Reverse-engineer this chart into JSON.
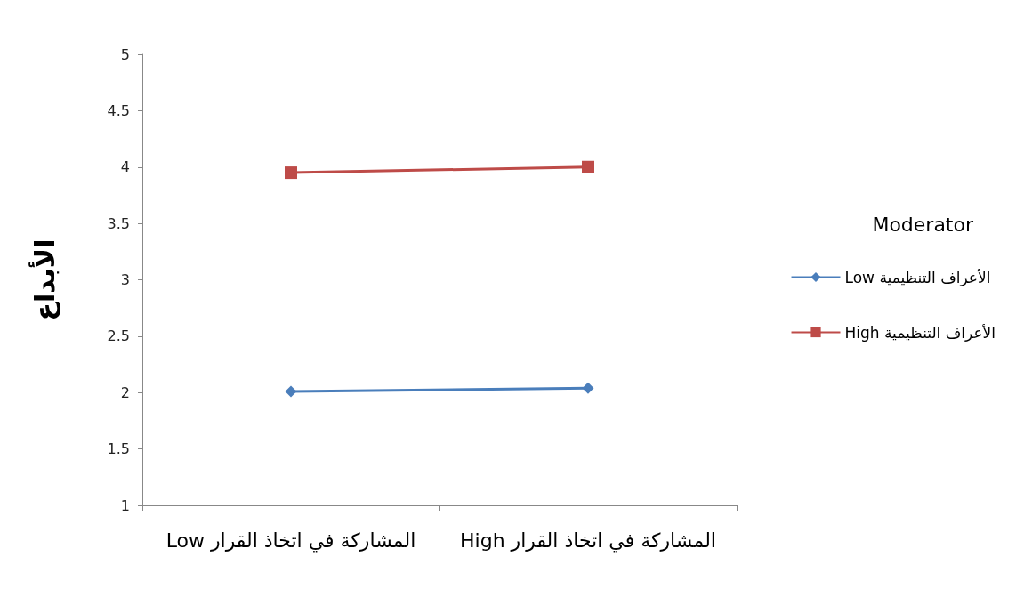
{
  "chart_data": {
    "type": "line",
    "ylabel": "الأبداع",
    "legend_title": "Moderator",
    "legend": "right",
    "categories": [
      "Low المشاركة في اتخاذ القرار",
      "High المشاركة في اتخاذ القرار"
    ],
    "ylim": [
      1,
      5
    ],
    "yticks": [
      1,
      1.5,
      2,
      2.5,
      3,
      3.5,
      4,
      4.5,
      5
    ],
    "grid": false,
    "series": [
      {
        "name": "Low الأعراف التنظيمية",
        "color": "#4a7ebb",
        "marker": "diamond",
        "values": [
          2.01,
          2.04
        ]
      },
      {
        "name": "High الأعراف التنظيمية",
        "color": "#be4b48",
        "marker": "square",
        "values": [
          3.95,
          4.0
        ]
      }
    ]
  }
}
